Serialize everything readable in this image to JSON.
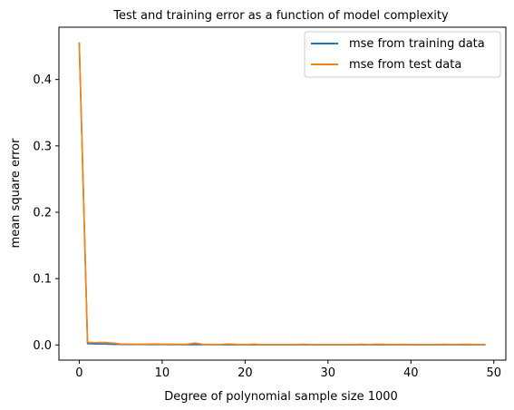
{
  "chart_data": {
    "type": "line",
    "title": "Test and training error as a function of model complexity",
    "xlabel": "Degree of polynomial sample size 1000",
    "ylabel": "mean square error",
    "xlim": [
      -2.45,
      51.45
    ],
    "ylim": [
      -0.0228,
      0.4788
    ],
    "xticks": [
      0,
      10,
      20,
      30,
      40,
      50
    ],
    "yticks": [
      0.0,
      0.1,
      0.2,
      0.3,
      0.4
    ],
    "ytick_labels": [
      "0.0",
      "0.1",
      "0.2",
      "0.3",
      "0.4"
    ],
    "grid": false,
    "legend_position": "top-right",
    "x": [
      0,
      1,
      2,
      3,
      4,
      5,
      6,
      7,
      8,
      9,
      10,
      11,
      12,
      13,
      14,
      15,
      16,
      17,
      18,
      19,
      20,
      21,
      22,
      23,
      24,
      25,
      26,
      27,
      28,
      29,
      30,
      31,
      32,
      33,
      34,
      35,
      36,
      37,
      38,
      39,
      40,
      41,
      42,
      43,
      44,
      45,
      46,
      47,
      48,
      49
    ],
    "series": [
      {
        "name": "mse from training data",
        "color": "#1f77b4",
        "values": [
          0.456,
          0.002,
          0.0015,
          0.0015,
          0.001,
          0.0008,
          0.0007,
          0.0007,
          0.0006,
          0.0006,
          0.0006,
          0.0005,
          0.0005,
          0.0005,
          0.0005,
          0.0005,
          0.0005,
          0.0004,
          0.0004,
          0.0004,
          0.0004,
          0.0004,
          0.0004,
          0.0004,
          0.0004,
          0.0004,
          0.0004,
          0.0004,
          0.0004,
          0.0004,
          0.0004,
          0.0004,
          0.0004,
          0.0004,
          0.0004,
          0.0004,
          0.0004,
          0.0004,
          0.0004,
          0.0004,
          0.0004,
          0.0004,
          0.0004,
          0.0004,
          0.0004,
          0.0004,
          0.0004,
          0.0004,
          0.0004,
          0.0004
        ]
      },
      {
        "name": "mse from test data",
        "color": "#ff7f0e",
        "values": [
          0.456,
          0.004,
          0.0035,
          0.004,
          0.003,
          0.0015,
          0.0012,
          0.001,
          0.0012,
          0.0015,
          0.0012,
          0.0012,
          0.001,
          0.0012,
          0.003,
          0.0008,
          0.0008,
          0.0006,
          0.0015,
          0.0008,
          0.0006,
          0.0012,
          0.0006,
          0.0006,
          0.0006,
          0.0006,
          0.0006,
          0.001,
          0.0006,
          0.0006,
          0.0006,
          0.0006,
          0.0006,
          0.0006,
          0.001,
          0.0006,
          0.0012,
          0.0008,
          0.0006,
          0.0008,
          0.0006,
          0.0006,
          0.0006,
          0.0006,
          0.001,
          0.0006,
          0.0008,
          0.001,
          0.0006,
          0.0008
        ]
      }
    ]
  }
}
